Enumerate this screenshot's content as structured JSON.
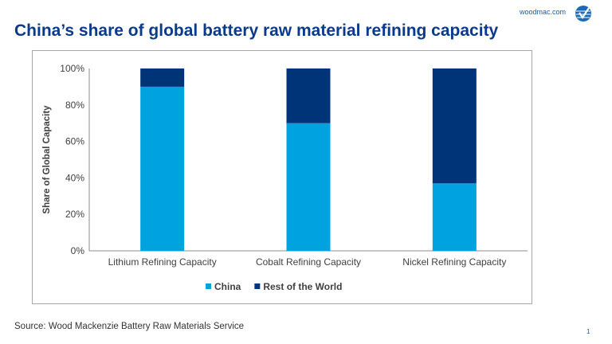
{
  "header": {
    "title": "China’s share of global battery raw material refining capacity",
    "site": "woodmac.com",
    "logo_icon": "wood-mackenzie-globe-check-icon"
  },
  "footer": {
    "source": "Source: Wood Mackenzie Battery Raw Materials Service",
    "page_number": "1"
  },
  "chart_data": {
    "type": "bar",
    "stacked": true,
    "categories": [
      "Lithium Refining Capacity",
      "Cobalt Refining Capacity",
      "Nickel Refining Capacity"
    ],
    "series": [
      {
        "name": "China",
        "values": [
          90,
          70,
          37
        ],
        "color": "#00a3e0"
      },
      {
        "name": "Rest of the World",
        "values": [
          10,
          30,
          63
        ],
        "color": "#003478"
      }
    ],
    "ylabel": "Share of Global Capacity",
    "xlabel": "",
    "ylim": [
      0,
      100
    ],
    "yticks": [
      "0%",
      "20%",
      "40%",
      "60%",
      "80%",
      "100%"
    ],
    "grid": false,
    "legend": "bottom"
  }
}
